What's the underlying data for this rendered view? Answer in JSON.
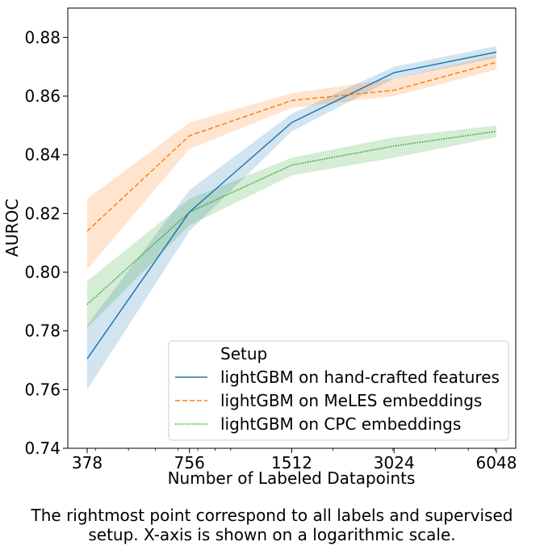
{
  "chart_data": {
    "type": "line",
    "xlabel": "Number of Labeled Datapoints",
    "ylabel": "AUROC",
    "x_scale": "log",
    "x": [
      378,
      756,
      1512,
      3024,
      6048
    ],
    "x_tick_labels": [
      "378",
      "756",
      "1512",
      "3024",
      "6048"
    ],
    "ylim": [
      0.74,
      0.89
    ],
    "y_ticks": [
      0.74,
      0.76,
      0.78,
      0.8,
      0.82,
      0.84,
      0.86,
      0.88
    ],
    "y_tick_labels": [
      "0.74",
      "0.76",
      "0.78",
      "0.80",
      "0.82",
      "0.84",
      "0.86",
      "0.88"
    ],
    "grid": false,
    "legend": {
      "title": "Setup",
      "placement": "lower-right"
    },
    "series": [
      {
        "name": "lightGBM on hand-crafted features",
        "color": "#1f77b4",
        "style": "solid",
        "values": [
          0.7705,
          0.8205,
          0.851,
          0.868,
          0.875
        ],
        "lower": [
          0.76,
          0.814,
          0.848,
          0.866,
          0.873
        ],
        "upper": [
          0.782,
          0.828,
          0.854,
          0.87,
          0.877
        ]
      },
      {
        "name": "lightGBM on MeLES embeddings",
        "color": "#ff7f0e",
        "style": "dashed",
        "values": [
          0.814,
          0.8465,
          0.8585,
          0.862,
          0.8715
        ],
        "lower": [
          0.801,
          0.842,
          0.856,
          0.86,
          0.869
        ],
        "upper": [
          0.825,
          0.851,
          0.861,
          0.866,
          0.874
        ]
      },
      {
        "name": "lightGBM on CPC embeddings",
        "color": "#2ca02c",
        "style": "dotted",
        "values": [
          0.789,
          0.8205,
          0.8365,
          0.843,
          0.848
        ],
        "lower": [
          0.781,
          0.816,
          0.833,
          0.839,
          0.846
        ],
        "upper": [
          0.797,
          0.825,
          0.839,
          0.846,
          0.85
        ]
      }
    ]
  },
  "caption": {
    "line1": "The rightmost point correspond to all labels and supervised",
    "line2": "setup. X-axis is shown on a logarithmic scale."
  }
}
